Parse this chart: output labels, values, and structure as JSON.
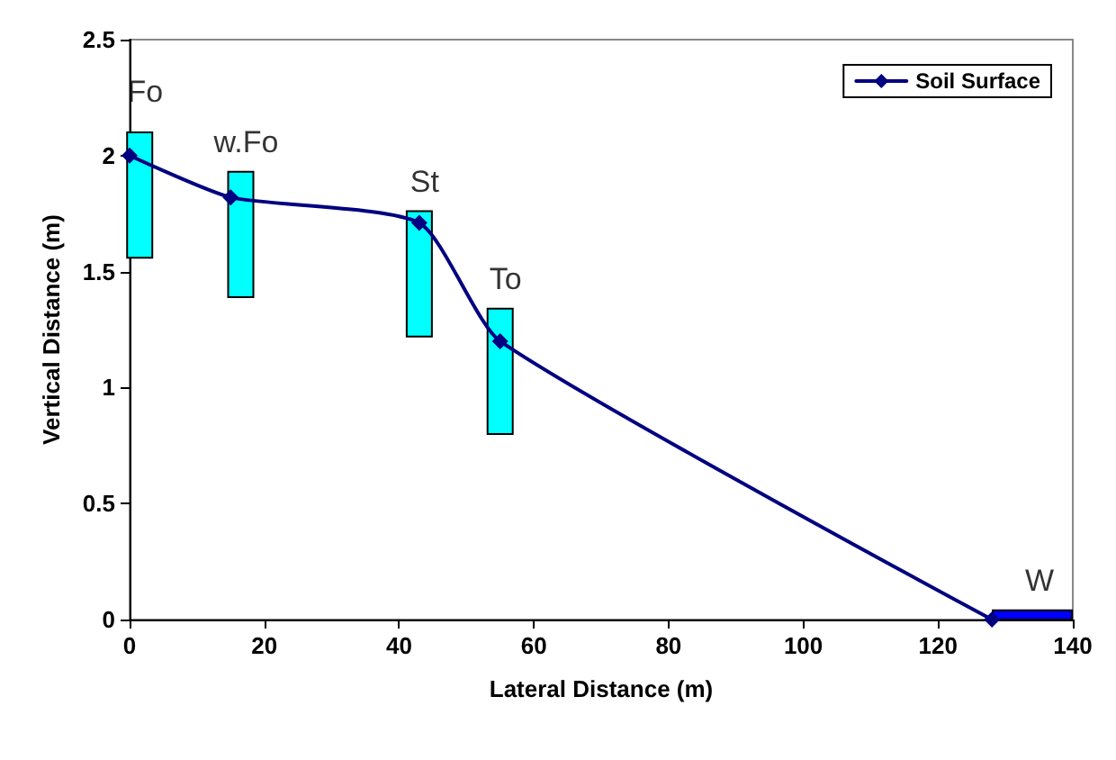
{
  "chart_data": {
    "type": "line",
    "xlabel": "Lateral Distance (m)",
    "ylabel": "Vertical Distance (m)",
    "xlim": [
      0,
      140
    ],
    "xticks": [
      0,
      20,
      40,
      60,
      80,
      100,
      120,
      140
    ],
    "ylim": [
      0,
      2.5
    ],
    "yticks": [
      0,
      0.5,
      1,
      1.5,
      2,
      2.5
    ],
    "grid": false,
    "legend": "top right",
    "marker": "diamond",
    "line_style": "solid",
    "series": [
      {
        "name": "Soil Surface",
        "color": "#000080",
        "x": [
          0,
          15,
          43,
          55,
          128
        ],
        "values": [
          2,
          1.82,
          1.71,
          1.2,
          0
        ]
      },
      {
        "type": "bar",
        "color": "#00ffff",
        "x": [
          1.5,
          16.5,
          43,
          55
        ],
        "base": [
          1.56,
          1.39,
          1.22,
          0.8
        ],
        "values": [
          0.54,
          0.54,
          0.54,
          0.54
        ]
      },
      {
        "type": "bar",
        "color": "#0000ff",
        "x": [
          134
        ],
        "base": [
          0
        ],
        "values": [
          0.04
        ]
      }
    ],
    "annotations": [
      "Fo",
      "w.Fo",
      "St",
      "To",
      "W"
    ]
  }
}
